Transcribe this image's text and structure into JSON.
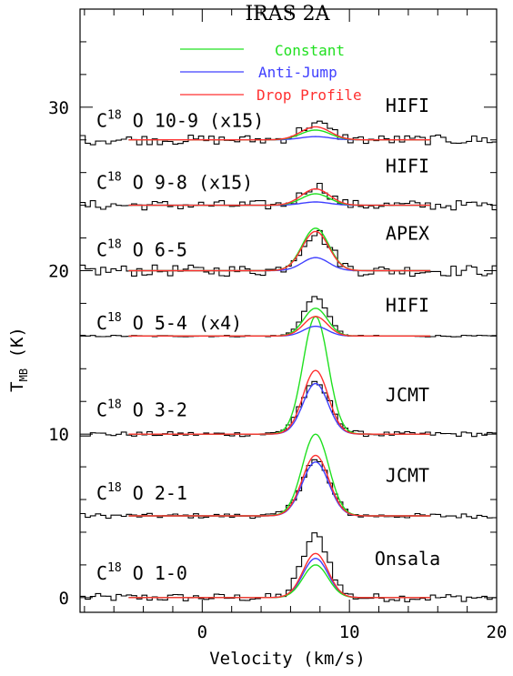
{
  "chart_data": {
    "type": "line",
    "title": "IRAS 2A",
    "xlabel": "Velocity (km/s)",
    "ylabel": {
      "main": "T",
      "subscript": "MB",
      "unit": " (K)"
    },
    "xlim": [
      -8.3,
      20
    ],
    "ylim": [
      -0.9,
      36
    ],
    "xticks": [
      0,
      10,
      20
    ],
    "yticks": [
      0,
      10,
      20,
      30
    ],
    "source_velocity": 7.7,
    "legend": {
      "position": "top",
      "entries": [
        {
          "name": "Constant",
          "color": "#20e020"
        },
        {
          "name": "Anti-Jump",
          "color": "#4040ff"
        },
        {
          "name": "Drop Profile",
          "color": "#ff3030"
        }
      ]
    },
    "model_x_range": [
      -5,
      15.5
    ],
    "spectra": [
      {
        "line_prefix": "C",
        "isotope": "18",
        "line_suffix": "O 1-0",
        "telescope": "Onsala",
        "baseline": 0,
        "observed_peak": 3.8,
        "observed_width": 0.9,
        "noise": 0.25,
        "label_y": 1.1,
        "tel_y": 2.0,
        "models": {
          "constant": 2.0,
          "anti_jump": 2.4,
          "drop": 2.7
        },
        "model_width": 0.85
      },
      {
        "line_prefix": "C",
        "isotope": "18",
        "line_suffix": "O 2-1",
        "telescope": "JCMT",
        "baseline": 5,
        "observed_peak": 3.4,
        "observed_width": 0.95,
        "noise": 0.15,
        "label_y": 6.0,
        "tel_y": 7.1,
        "models": {
          "constant": 5.0,
          "anti_jump": 3.3,
          "drop": 3.7
        },
        "model_width": 0.9
      },
      {
        "line_prefix": "C",
        "isotope": "18",
        "line_suffix": "O 3-2",
        "telescope": "JCMT",
        "baseline": 10,
        "observed_peak": 3.1,
        "observed_width": 1.0,
        "noise": 0.15,
        "label_y": 11.1,
        "tel_y": 12.0,
        "models": {
          "constant": 7.2,
          "anti_jump": 3.1,
          "drop": 3.9
        },
        "model_width": 0.85
      },
      {
        "line_prefix": "C",
        "isotope": "18",
        "line_suffix": "O 5-4 (x4)",
        "telescope": "HIFI",
        "baseline": 16,
        "observed_peak": 2.4,
        "observed_width": 0.8,
        "noise": 0.05,
        "label_y": 16.4,
        "tel_y": 17.5,
        "models": {
          "constant": 1.7,
          "anti_jump": 0.6,
          "drop": 1.2
        },
        "model_width": 0.8
      },
      {
        "line_prefix": "C",
        "isotope": "18",
        "line_suffix": "O 6-5",
        "telescope": "APEX",
        "baseline": 20,
        "observed_peak": 2.3,
        "observed_width": 1.0,
        "noise": 0.35,
        "label_y": 20.9,
        "tel_y": 21.9,
        "models": {
          "constant": 2.6,
          "anti_jump": 0.8,
          "drop": 2.4
        },
        "model_width": 0.9
      },
      {
        "line_prefix": "C",
        "isotope": "18",
        "line_suffix": "O 9-8 (x15)",
        "telescope": "HIFI",
        "baseline": 24,
        "observed_peak": 1.2,
        "observed_width": 0.9,
        "noise": 0.3,
        "label_y": 25.0,
        "tel_y": 26.0,
        "models": {
          "constant": 0.7,
          "anti_jump": 0.2,
          "drop": 1.0
        },
        "model_width": 0.95
      },
      {
        "line_prefix": "C",
        "isotope": "18",
        "line_suffix": "O 10-9 (x15)",
        "telescope": "HIFI",
        "baseline": 28,
        "observed_peak": 1.0,
        "observed_width": 1.0,
        "noise": 0.3,
        "label_y": 28.8,
        "tel_y": 29.7,
        "models": {
          "constant": 0.6,
          "anti_jump": 0.2,
          "drop": 0.8
        },
        "model_width": 1.0
      }
    ]
  }
}
